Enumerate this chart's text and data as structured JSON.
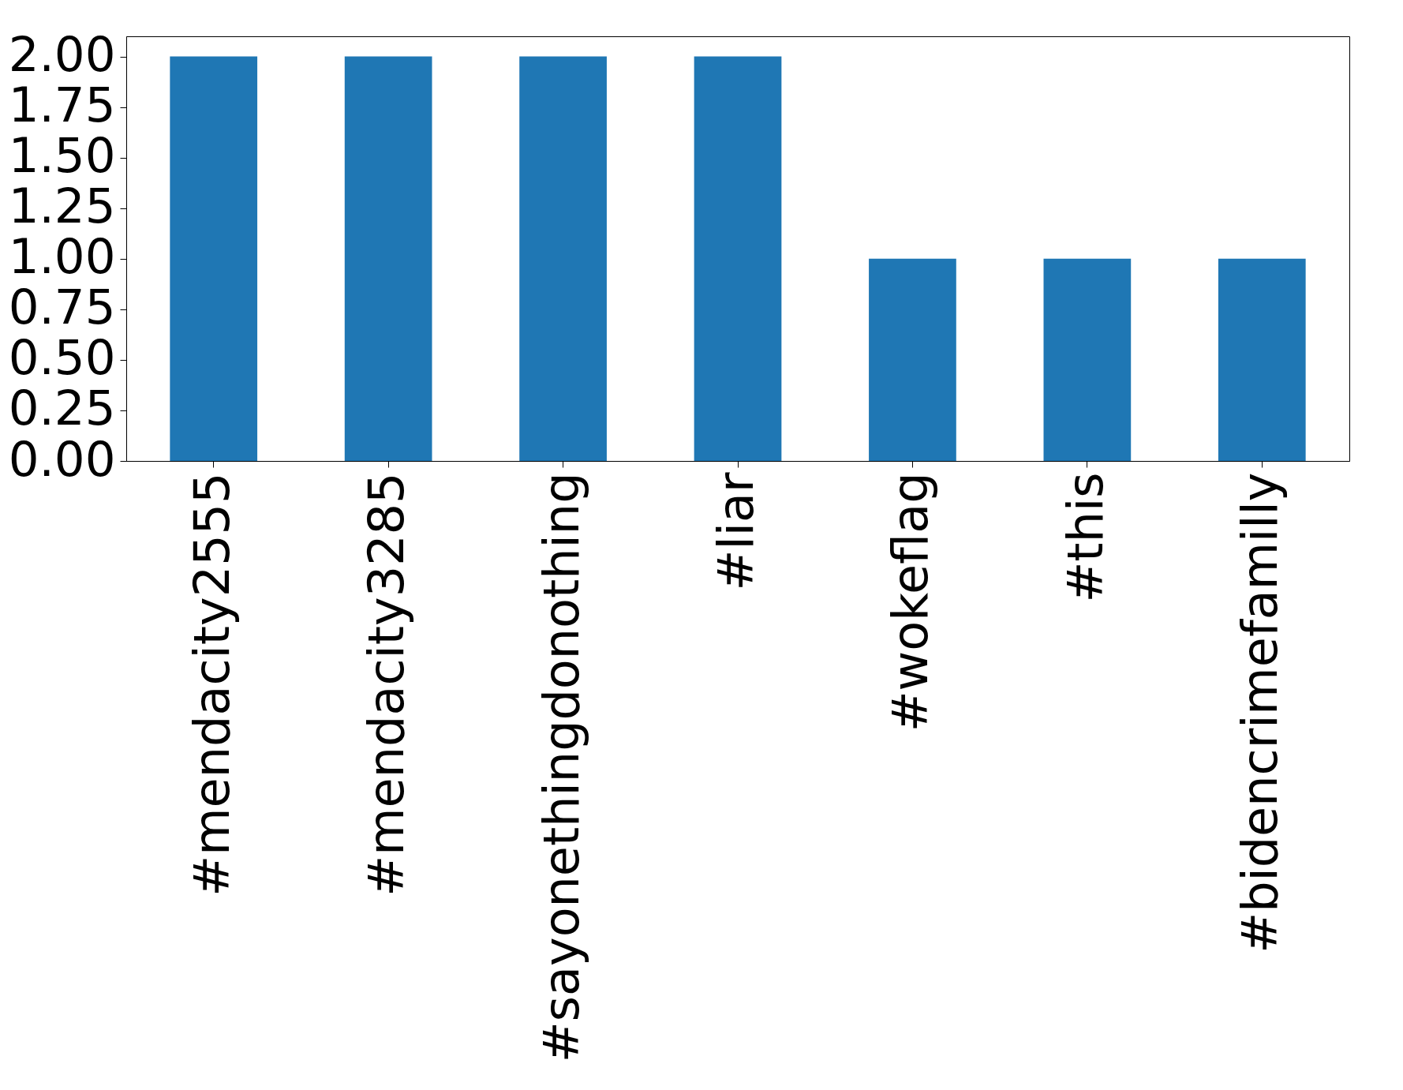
{
  "chart_data": {
    "type": "bar",
    "categories": [
      "#mendacity2555",
      "#mendacity3285",
      "#sayonethingdonothing",
      "#liar",
      "#wokeflag",
      "#this",
      "#bidencrimefamilly"
    ],
    "values": [
      2,
      2,
      2,
      2,
      1,
      1,
      1
    ],
    "color": "#1f77b4",
    "ylim": [
      0,
      2.1
    ],
    "yticks": [
      {
        "value": 0,
        "label": "0.00"
      },
      {
        "value": 0.25,
        "label": "0.25"
      },
      {
        "value": 0.5,
        "label": "0.50"
      },
      {
        "value": 0.75,
        "label": "0.75"
      },
      {
        "value": 1,
        "label": "1.00"
      },
      {
        "value": 1.25,
        "label": "1.25"
      },
      {
        "value": 1.5,
        "label": "1.50"
      },
      {
        "value": 1.75,
        "label": "1.75"
      },
      {
        "value": 2,
        "label": "2.00"
      }
    ],
    "grid": false
  }
}
